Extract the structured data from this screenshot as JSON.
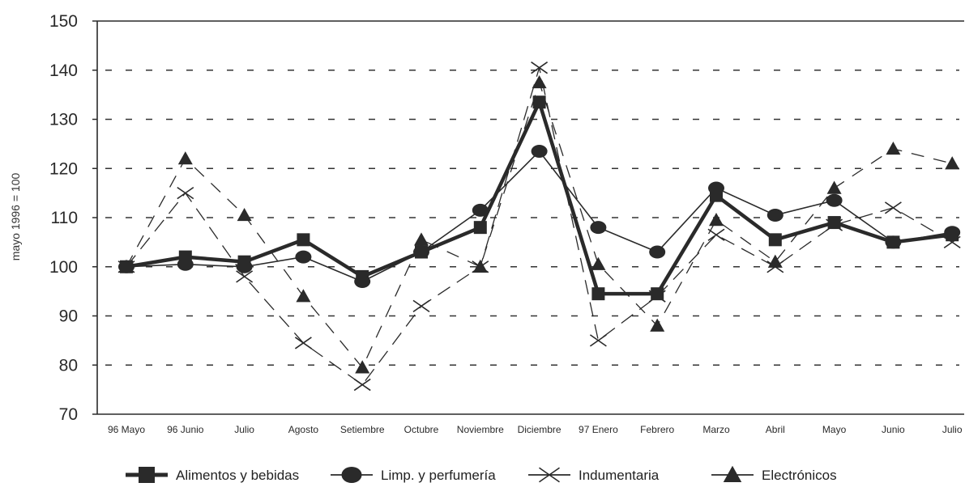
{
  "chart_data": {
    "type": "line",
    "ylabel": "mayo 1996 = 100",
    "xlabel": "",
    "ylim": [
      70,
      150
    ],
    "yticks": [
      70,
      80,
      90,
      100,
      110,
      120,
      130,
      140,
      150
    ],
    "grid": "horizontal dashed",
    "legend_position": "bottom",
    "categories": [
      "96 Mayo",
      "96 Junio",
      "Julio",
      "Agosto",
      "Setiembre",
      "Octubre",
      "Noviembre",
      "Diciembre",
      "97 Enero",
      "Febrero",
      "Marzo",
      "Abril",
      "Mayo",
      "Junio",
      "Julio"
    ],
    "series": [
      {
        "name": "Alimentos y bebidas",
        "marker": "square",
        "values": [
          100,
          102,
          101,
          105.5,
          98,
          103,
          108,
          133.5,
          94.5,
          94.5,
          114.5,
          105.5,
          109,
          105,
          106.5
        ]
      },
      {
        "name": "Limp. y perfumería",
        "marker": "circle",
        "values": [
          100,
          100.5,
          100,
          102,
          97,
          103,
          111.5,
          123.5,
          108,
          103,
          116,
          110.5,
          113.5,
          105,
          107
        ]
      },
      {
        "name": "Indumentaria",
        "marker": "x",
        "values": [
          100,
          115,
          98,
          84.5,
          76,
          92,
          100,
          140.5,
          85,
          94,
          106.5,
          100,
          108.5,
          112,
          105
        ]
      },
      {
        "name": "Electrónicos",
        "marker": "triangle",
        "values": [
          100,
          122,
          110.5,
          94,
          79.5,
          105.5,
          100,
          137.5,
          100.5,
          88,
          109.5,
          101,
          116,
          124,
          121
        ]
      }
    ]
  },
  "colors": {
    "ink": "#2a2a2a",
    "background": "#ffffff"
  }
}
